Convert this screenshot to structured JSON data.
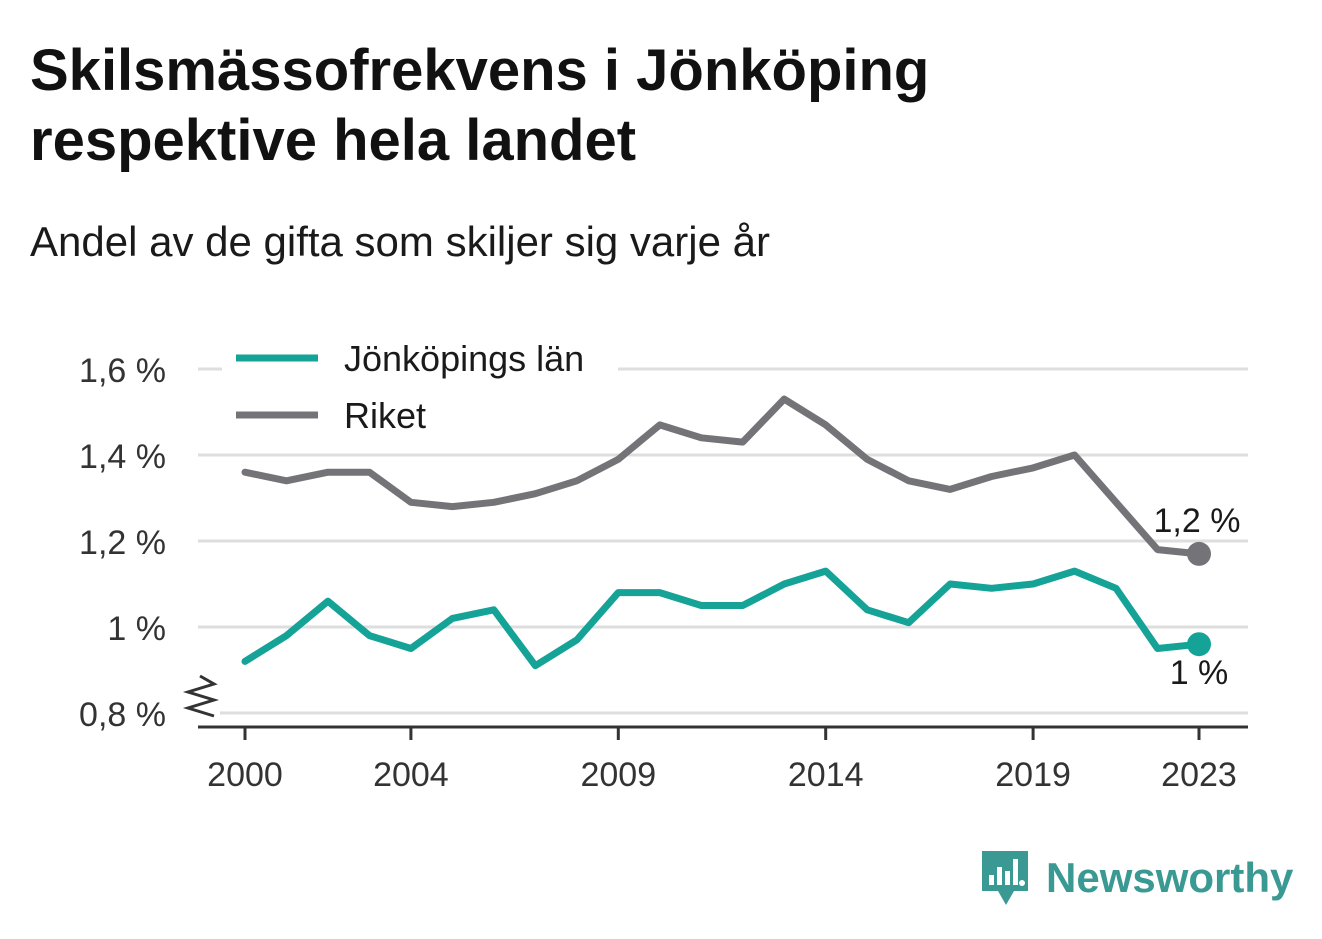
{
  "title": "Skilsmässofrekvens i Jönköping respektive hela landet",
  "subtitle": "Andel av de gifta som skiljer sig varje år",
  "brand": "Newsworthy",
  "chart_data": {
    "type": "line",
    "y_ticks": [
      "0,8 %",
      "1 %",
      "1,2 %",
      "1,4 %",
      "1,6 %"
    ],
    "x_ticks": [
      "2000",
      "2004",
      "2009",
      "2014",
      "2019",
      "2023"
    ],
    "ylim": [
      0.8,
      1.6
    ],
    "y_axis_break": true,
    "grid": "horizontal",
    "legend_position": "top-left",
    "x": [
      2000,
      2001,
      2002,
      2003,
      2004,
      2005,
      2006,
      2007,
      2008,
      2009,
      2010,
      2011,
      2012,
      2013,
      2014,
      2015,
      2016,
      2017,
      2018,
      2019,
      2020,
      2021,
      2022,
      2023
    ],
    "series": [
      {
        "name": "Jönköpings län",
        "color": "#14a396",
        "end_label": "1 %",
        "values": [
          0.92,
          0.98,
          1.06,
          0.98,
          0.95,
          1.02,
          1.04,
          0.91,
          0.97,
          1.08,
          1.08,
          1.05,
          1.05,
          1.1,
          1.13,
          1.04,
          1.01,
          1.1,
          1.09,
          1.1,
          1.13,
          1.09,
          0.95,
          0.96
        ]
      },
      {
        "name": "Riket",
        "color": "#747378",
        "end_label": "1,2 %",
        "values": [
          1.36,
          1.34,
          1.36,
          1.36,
          1.29,
          1.28,
          1.29,
          1.31,
          1.34,
          1.39,
          1.47,
          1.44,
          1.43,
          1.53,
          1.47,
          1.39,
          1.34,
          1.32,
          1.35,
          1.37,
          1.4,
          1.29,
          1.18,
          1.17
        ]
      }
    ]
  }
}
